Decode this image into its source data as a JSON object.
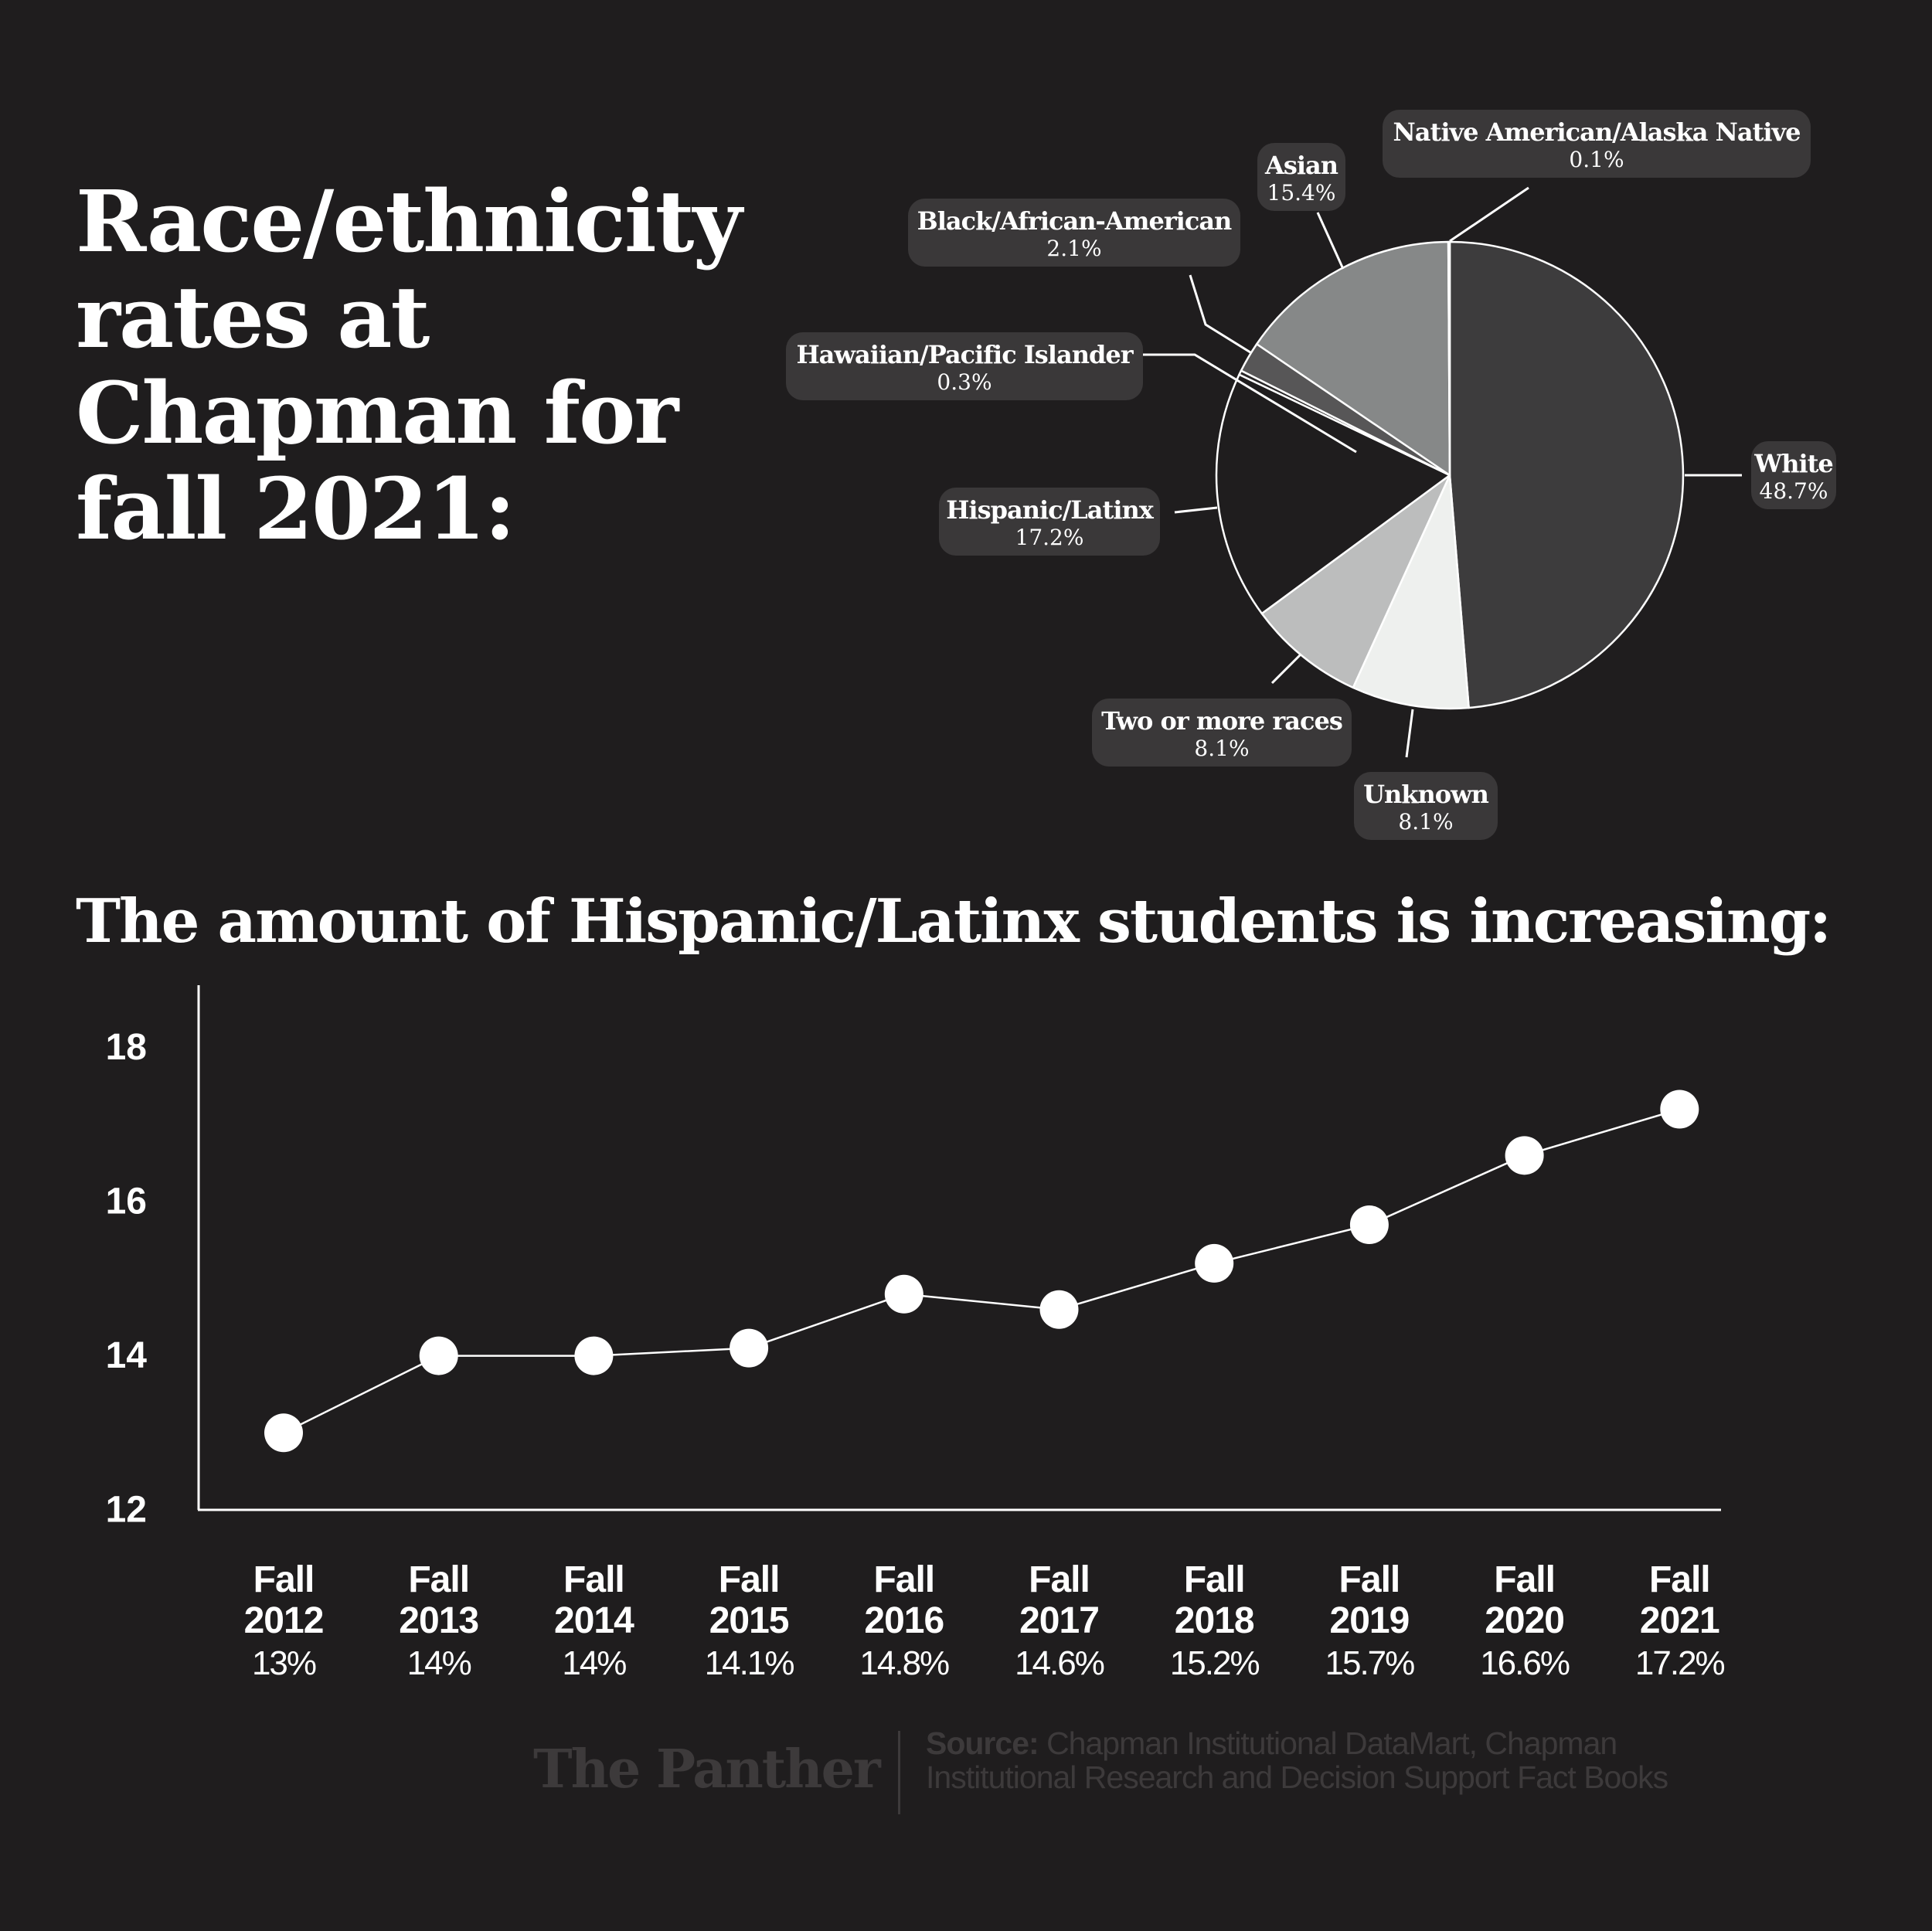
{
  "title_lines": [
    "Race/ethnicity",
    "rates at",
    "Chapman for",
    "fall 2021:"
  ],
  "subtitle": "The amount of Hispanic/Latinx students is increasing:",
  "colors": {
    "background": "#1f1d1e",
    "label_box": "#3a3839",
    "line": "#ffffff",
    "footer": "#3d3a3b"
  },
  "chart_data": [
    {
      "type": "pie",
      "slices": [
        {
          "name": "White",
          "percent": "48.7%",
          "value": 48.7,
          "color": "#3d3c3d"
        },
        {
          "name": "Unknown",
          "percent": "8.1%",
          "value": 8.1,
          "color": "#eef0ee"
        },
        {
          "name": "Two or more races",
          "percent": "8.1%",
          "value": 8.1,
          "color": "#bcbdbd"
        },
        {
          "name": "Hispanic/Latinx",
          "percent": "17.2%",
          "value": 17.2,
          "color": "#1f1d1e"
        },
        {
          "name": "Hawaiian/Pacific Islander",
          "percent": "0.3%",
          "value": 0.3,
          "color": "#2a2829"
        },
        {
          "name": "Black/African-American",
          "percent": "2.1%",
          "value": 2.1,
          "color": "#575657"
        },
        {
          "name": "Asian",
          "percent": "15.4%",
          "value": 15.4,
          "color": "#868888"
        },
        {
          "name": "Native American/Alaska Native",
          "percent": "0.1%",
          "value": 0.1,
          "color": "#cfcfcf"
        }
      ]
    },
    {
      "type": "line",
      "categories": [
        "Fall 2012",
        "Fall 2013",
        "Fall 2014",
        "Fall 2015",
        "Fall 2016",
        "Fall 2017",
        "Fall 2018",
        "Fall 2019",
        "Fall 2020",
        "Fall 2021"
      ],
      "category_lines": [
        [
          "Fall",
          "2012"
        ],
        [
          "Fall",
          "2013"
        ],
        [
          "Fall",
          "2014"
        ],
        [
          "Fall",
          "2015"
        ],
        [
          "Fall",
          "2016"
        ],
        [
          "Fall",
          "2017"
        ],
        [
          "Fall",
          "2018"
        ],
        [
          "Fall",
          "2019"
        ],
        [
          "Fall",
          "2020"
        ],
        [
          "Fall",
          "2021"
        ]
      ],
      "value_labels": [
        "13%",
        "14%",
        "14%",
        "14.1%",
        "14.8%",
        "14.6%",
        "15.2%",
        "15.7%",
        "16.6%",
        "17.2%"
      ],
      "series": [
        {
          "values": [
            13,
            14,
            14,
            14.1,
            14.8,
            14.6,
            15.2,
            15.7,
            16.6,
            17.2
          ]
        }
      ],
      "yticks": [
        "12",
        "14",
        "16",
        "18"
      ],
      "ylim": [
        12,
        19
      ],
      "grid": false,
      "xlabel": "",
      "ylabel": ""
    }
  ],
  "footer": {
    "brand": "The Panther",
    "source_label": "Source:",
    "source_text": "Chapman Institutional DataMart, Chapman Institutional Research and Decision Support Fact Books"
  }
}
